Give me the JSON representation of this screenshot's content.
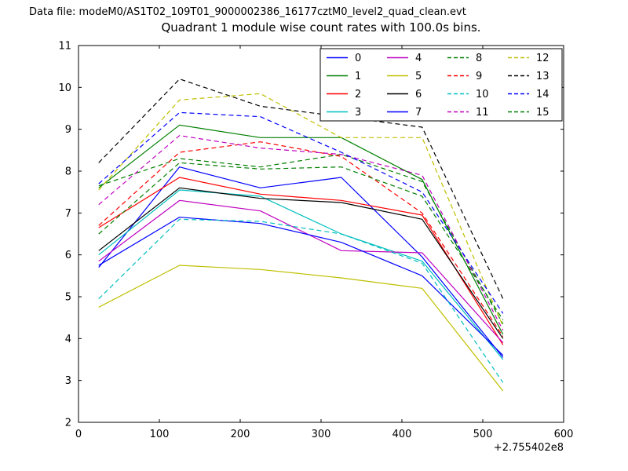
{
  "header": {
    "datafile_label": "Data file: modeM0/AS1T02_109T01_9000002386_16177cztM0_level2_quad_clean.evt"
  },
  "chart_data": {
    "type": "line",
    "title": "Quadrant 1 module wise count rates with 100.0s bins.",
    "xlabel": "",
    "ylabel": "",
    "xlim": [
      0,
      600
    ],
    "ylim": [
      2,
      11
    ],
    "xticks": [
      0,
      100,
      200,
      300,
      400,
      500,
      600
    ],
    "yticks": [
      2,
      3,
      4,
      5,
      6,
      7,
      8,
      9,
      10,
      11
    ],
    "x_offset_label": "+2.755402e8",
    "grid": false,
    "legend_position": "upper right",
    "legend_columns": 4,
    "x": [
      25,
      125,
      225,
      325,
      425,
      525
    ],
    "series": [
      {
        "name": "0",
        "color": "#0000ff",
        "style": "solid",
        "values": [
          5.7,
          8.1,
          7.6,
          7.85,
          5.95,
          3.55
        ]
      },
      {
        "name": "1",
        "color": "#007f00",
        "style": "solid",
        "values": [
          7.6,
          9.1,
          8.8,
          8.8,
          7.8,
          4.1
        ]
      },
      {
        "name": "2",
        "color": "#ff0000",
        "style": "solid",
        "values": [
          6.65,
          7.85,
          7.45,
          7.3,
          6.95,
          3.85
        ]
      },
      {
        "name": "3",
        "color": "#00bfbf",
        "style": "solid",
        "values": [
          6.0,
          7.55,
          7.4,
          6.5,
          5.85,
          3.5
        ]
      },
      {
        "name": "4",
        "color": "#bf00bf",
        "style": "solid",
        "values": [
          5.85,
          7.3,
          7.05,
          6.1,
          6.05,
          3.9
        ]
      },
      {
        "name": "5",
        "color": "#bfbf00",
        "style": "solid",
        "values": [
          4.75,
          5.75,
          5.65,
          5.45,
          5.2,
          2.75
        ]
      },
      {
        "name": "6",
        "color": "#000000",
        "style": "solid",
        "values": [
          6.1,
          7.6,
          7.35,
          7.25,
          6.85,
          4.0
        ]
      },
      {
        "name": "7",
        "color": "#0000ff",
        "style": "solid",
        "values": [
          5.75,
          6.9,
          6.75,
          6.3,
          5.5,
          3.6
        ]
      },
      {
        "name": "8",
        "color": "#007f00",
        "style": "dashed",
        "values": [
          7.65,
          8.3,
          8.1,
          8.4,
          7.75,
          4.35
        ]
      },
      {
        "name": "9",
        "color": "#ff0000",
        "style": "dashed",
        "values": [
          6.7,
          8.45,
          8.7,
          8.35,
          7.0,
          4.05
        ]
      },
      {
        "name": "10",
        "color": "#00bfbf",
        "style": "dashed",
        "values": [
          4.95,
          6.85,
          6.8,
          6.5,
          5.8,
          2.95
        ]
      },
      {
        "name": "11",
        "color": "#bf00bf",
        "style": "dashed",
        "values": [
          7.2,
          8.85,
          8.55,
          8.4,
          7.9,
          4.2
        ]
      },
      {
        "name": "12",
        "color": "#bfbf00",
        "style": "dashed",
        "values": [
          7.55,
          9.7,
          9.85,
          8.8,
          8.8,
          4.3
        ]
      },
      {
        "name": "13",
        "color": "#000000",
        "style": "dashed",
        "values": [
          8.2,
          10.2,
          9.55,
          9.3,
          9.05,
          4.95
        ]
      },
      {
        "name": "14",
        "color": "#0000ff",
        "style": "dashed",
        "values": [
          7.7,
          9.4,
          9.3,
          8.45,
          7.5,
          4.6
        ]
      },
      {
        "name": "15",
        "color": "#007f00",
        "style": "dashed",
        "values": [
          6.5,
          8.2,
          8.05,
          8.1,
          7.4,
          4.45
        ]
      }
    ]
  }
}
